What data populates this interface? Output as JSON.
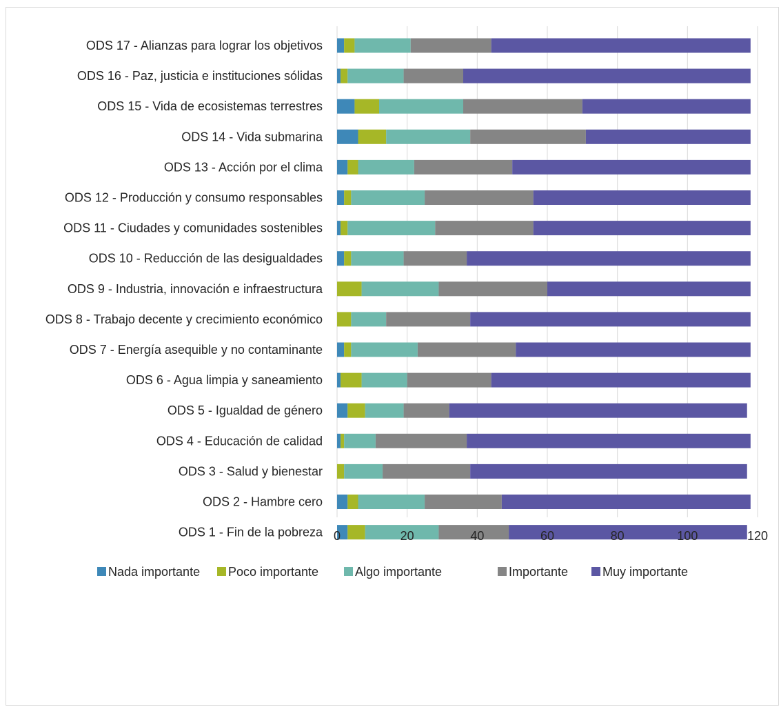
{
  "chart_data": {
    "type": "bar",
    "orientation": "horizontal",
    "stacked": true,
    "categories": [
      "ODS 17 - Alianzas para lograr los objetivos",
      "ODS 16 - Paz, justicia e instituciones sólidas",
      "ODS 15 -  Vida de ecosistemas terrestres",
      "ODS 14 - Vida submarina",
      "ODS 13 - Acción por el clima",
      "ODS 12 - Producción y consumo responsables",
      "ODS 11 - Ciudades y comunidades sostenibles",
      "ODS 10 - Reducción de las desigualdades",
      "ODS 9 - Industria, innovación e infraestructura",
      "ODS 8 - Trabajo decente y crecimiento económico",
      "ODS 7 - Energía asequible y no contaminante",
      "ODS 6  - Agua limpia y saneamiento",
      "ODS 5 - Igualdad de género",
      "ODS 4 - Educación de calidad",
      "ODS 3 - Salud y bienestar",
      "ODS 2 - Hambre cero",
      "ODS 1 - Fin de la pobreza"
    ],
    "series": [
      {
        "name": "Nada importante",
        "color": "#3e88b8",
        "values": [
          2,
          1,
          5,
          6,
          3,
          2,
          1,
          2,
          0,
          0,
          2,
          1,
          3,
          1,
          0,
          3,
          3
        ]
      },
      {
        "name": "Poco importante",
        "color": "#a6b727",
        "values": [
          3,
          2,
          7,
          8,
          3,
          2,
          2,
          2,
          7,
          4,
          2,
          6,
          5,
          1,
          2,
          3,
          5
        ]
      },
      {
        "name": "Algo importante",
        "color": "#6fb8ac",
        "values": [
          16,
          16,
          24,
          24,
          16,
          21,
          25,
          15,
          22,
          10,
          19,
          13,
          11,
          9,
          11,
          19,
          21
        ]
      },
      {
        "name": "Importante",
        "color": "#858585",
        "values": [
          23,
          17,
          34,
          33,
          28,
          31,
          28,
          18,
          31,
          24,
          28,
          24,
          13,
          26,
          25,
          22,
          20
        ]
      },
      {
        "name": "Muy importante",
        "color": "#5b57a3",
        "values": [
          74,
          82,
          48,
          47,
          68,
          62,
          62,
          81,
          58,
          80,
          67,
          74,
          85,
          81,
          79,
          71,
          68
        ]
      }
    ],
    "x_ticks": [
      "0",
      "20",
      "40",
      "60",
      "80",
      "100",
      "120"
    ],
    "xlim": [
      0,
      120
    ],
    "grid": true,
    "legend_position": "bottom"
  }
}
